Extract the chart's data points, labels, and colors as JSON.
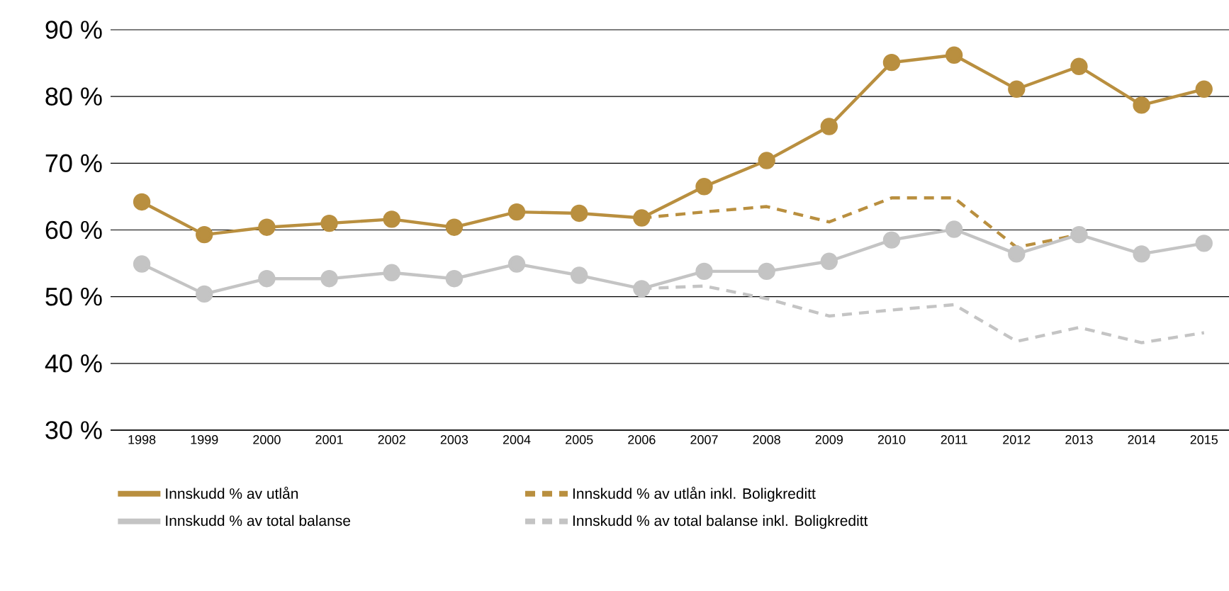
{
  "chart_data": {
    "type": "line",
    "categories": [
      "1998",
      "1999",
      "2000",
      "2001",
      "2002",
      "2003",
      "2004",
      "2005",
      "2006",
      "2007",
      "2008",
      "2009",
      "2010",
      "2011",
      "2012",
      "2013",
      "2014",
      "2015"
    ],
    "series": [
      {
        "name": "Innskudd % av utlån",
        "color": "#b98f3f",
        "line_style": "solid",
        "marker": "circle",
        "values": [
          64.2,
          59.3,
          60.4,
          61.0,
          61.6,
          60.4,
          62.7,
          62.5,
          61.8,
          66.5,
          70.4,
          75.5,
          85.1,
          86.2,
          81.1,
          84.5,
          78.7,
          81.1
        ]
      },
      {
        "name": "Innskudd % av utlån inkl. Boligkreditt",
        "color": "#b98f3f",
        "line_style": "dashed",
        "marker": "none",
        "values": [
          null,
          null,
          null,
          null,
          null,
          null,
          null,
          null,
          61.8,
          62.7,
          63.5,
          61.2,
          64.8,
          64.8,
          57.4,
          59.3,
          null,
          null
        ]
      },
      {
        "name": "Innskudd % av total balanse",
        "color": "#c4c4c4",
        "line_style": "solid",
        "marker": "circle",
        "values": [
          54.9,
          50.4,
          52.7,
          52.7,
          53.6,
          52.7,
          54.9,
          53.2,
          51.2,
          53.8,
          53.8,
          55.3,
          58.5,
          60.1,
          56.4,
          59.3,
          56.4,
          58.0
        ]
      },
      {
        "name": "Innskudd % av total balanse inkl. Boligkreditt",
        "color": "#c4c4c4",
        "line_style": "dashed",
        "marker": "none",
        "values": [
          null,
          null,
          null,
          null,
          null,
          null,
          null,
          null,
          51.2,
          51.6,
          49.7,
          47.1,
          48.0,
          48.8,
          43.3,
          45.4,
          43.1,
          44.6
        ]
      }
    ],
    "ylim": [
      30,
      90
    ],
    "yticks": [
      {
        "value": 30,
        "label": "30 %"
      },
      {
        "value": 40,
        "label": "40 %"
      },
      {
        "value": 50,
        "label": "50 %"
      },
      {
        "value": 60,
        "label": "60 %"
      },
      {
        "value": 70,
        "label": "70 %"
      },
      {
        "value": 80,
        "label": "80 %"
      },
      {
        "value": 90,
        "label": "90 %"
      }
    ],
    "grid": "y",
    "legend": "bottom"
  }
}
